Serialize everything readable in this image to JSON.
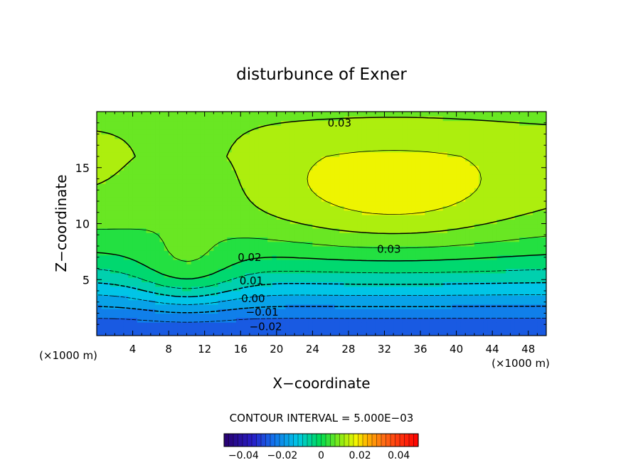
{
  "chart_data": {
    "type": "heatmap",
    "title": "disturbunce of Exner",
    "xlabel": "X−coordinate",
    "ylabel": "Z−coordinate",
    "x_unit_left": "(×1000 m)",
    "x_unit_right": "(×1000 m)",
    "xlim": [
      0,
      50
    ],
    "ylim": [
      0,
      20
    ],
    "x_ticks": [
      "4",
      "8",
      "12",
      "16",
      "20",
      "24",
      "28",
      "32",
      "36",
      "40",
      "44",
      "48"
    ],
    "x_tick_values": [
      4,
      8,
      12,
      16,
      20,
      24,
      28,
      32,
      36,
      40,
      44,
      48
    ],
    "y_ticks": [
      "5",
      "10",
      "15"
    ],
    "y_tick_values": [
      5,
      10,
      15
    ],
    "contour_interval_text": "CONTOUR INTERVAL = 5.000E−03",
    "contour_interval": 0.005,
    "contour_labels": [
      {
        "text": "0.03",
        "x": 27,
        "z": 19.0
      },
      {
        "text": "0.03",
        "x": 32.5,
        "z": 7.7
      },
      {
        "text": "0.02",
        "x": 17,
        "z": 7.0
      },
      {
        "text": "0.01",
        "x": 17.2,
        "z": 4.9
      },
      {
        "text": "0.00",
        "x": 17.4,
        "z": 3.3
      },
      {
        "text": "−0.01",
        "x": 18.4,
        "z": 2.1
      },
      {
        "text": "−0.02",
        "x": 18.8,
        "z": 0.8
      }
    ],
    "colorbar": {
      "range": [
        -0.05,
        0.05
      ],
      "tick_labels": [
        "−0.04",
        "−0.02",
        "0",
        "0.02",
        "0.04"
      ],
      "tick_values": [
        -0.04,
        -0.02,
        0,
        0.02,
        0.04
      ]
    }
  }
}
